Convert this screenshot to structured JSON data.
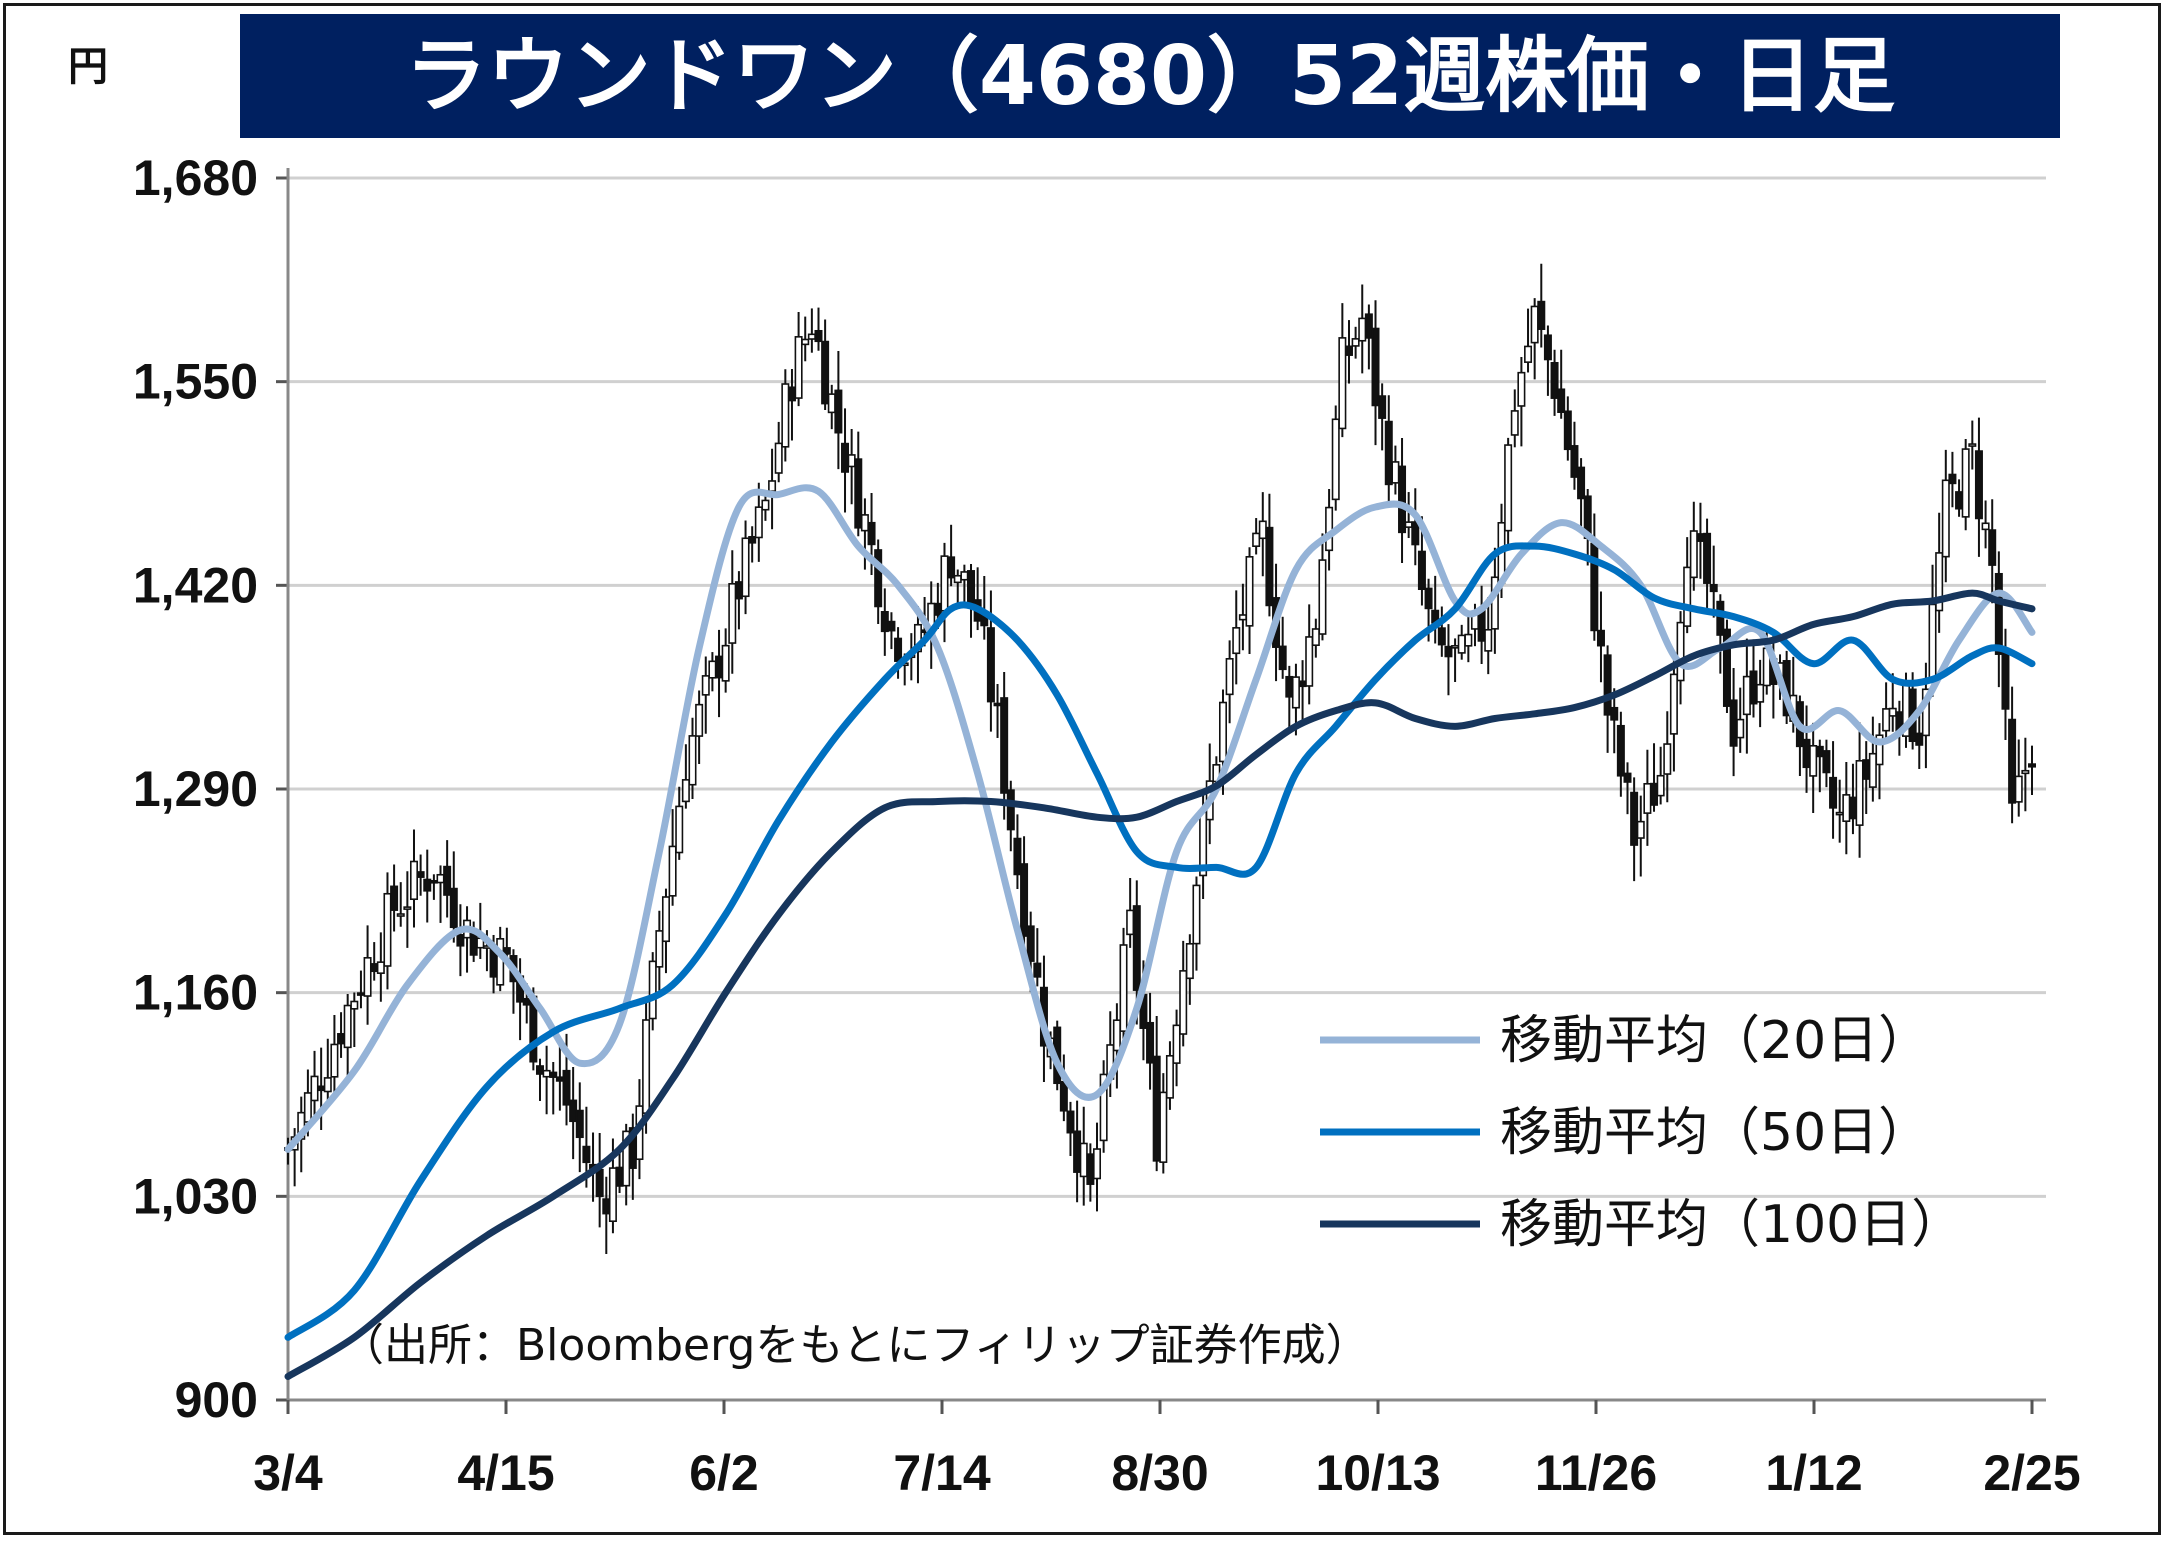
{
  "chart_data": {
    "type": "candlestick",
    "title": "ラウンドワン（4680）52週株価・日足",
    "ylabel": "円",
    "ylim": [
      900,
      1680
    ],
    "yticks": [
      "1,680",
      "1,550",
      "1,420",
      "1,290",
      "1,160",
      "1,030",
      "900"
    ],
    "ytick_values": [
      1680,
      1550,
      1420,
      1290,
      1160,
      1030,
      900
    ],
    "xticks": [
      "3/4",
      "4/15",
      "6/2",
      "7/14",
      "8/30",
      "10/13",
      "11/26",
      "1/12",
      "2/25"
    ],
    "grid": true,
    "legend_position": "bottom-right",
    "source": "（出所：Bloombergをもとにフィリップ証券作成）",
    "price_path": [
      [
        0,
        1060
      ],
      [
        10,
        1160
      ],
      [
        16,
        1215
      ],
      [
        22,
        1240
      ],
      [
        27,
        1200
      ],
      [
        33,
        1180
      ],
      [
        38,
        1120
      ],
      [
        42,
        1090
      ],
      [
        47,
        1030
      ],
      [
        52,
        1060
      ],
      [
        56,
        1200
      ],
      [
        60,
        1310
      ],
      [
        64,
        1360
      ],
      [
        68,
        1420
      ],
      [
        72,
        1470
      ],
      [
        76,
        1555
      ],
      [
        79,
        1590
      ],
      [
        83,
        1520
      ],
      [
        87,
        1460
      ],
      [
        91,
        1390
      ],
      [
        95,
        1380
      ],
      [
        100,
        1440
      ],
      [
        104,
        1400
      ],
      [
        107,
        1330
      ],
      [
        110,
        1240
      ],
      [
        114,
        1140
      ],
      [
        118,
        1080
      ],
      [
        121,
        1030
      ],
      [
        124,
        1120
      ],
      [
        127,
        1200
      ],
      [
        131,
        1070
      ],
      [
        135,
        1180
      ],
      [
        139,
        1290
      ],
      [
        143,
        1390
      ],
      [
        147,
        1450
      ],
      [
        151,
        1340
      ],
      [
        155,
        1400
      ],
      [
        159,
        1560
      ],
      [
        162,
        1590
      ],
      [
        165,
        1520
      ],
      [
        169,
        1450
      ],
      [
        173,
        1380
      ],
      [
        177,
        1370
      ],
      [
        181,
        1400
      ],
      [
        185,
        1540
      ],
      [
        188,
        1590
      ],
      [
        191,
        1550
      ],
      [
        195,
        1470
      ],
      [
        199,
        1340
      ],
      [
        203,
        1260
      ],
      [
        207,
        1300
      ],
      [
        211,
        1450
      ],
      [
        214,
        1420
      ],
      [
        218,
        1330
      ],
      [
        222,
        1370
      ],
      [
        226,
        1350
      ],
      [
        230,
        1300
      ],
      [
        234,
        1270
      ],
      [
        238,
        1300
      ],
      [
        242,
        1350
      ],
      [
        246,
        1330
      ],
      [
        250,
        1470
      ],
      [
        254,
        1500
      ],
      [
        257,
        1430
      ],
      [
        260,
        1270
      ],
      [
        263,
        1320
      ]
    ],
    "series": [
      {
        "name": "移動平均（20日）",
        "color": "#95b3d7",
        "points": [
          [
            0,
            1060
          ],
          [
            10,
            1110
          ],
          [
            18,
            1165
          ],
          [
            26,
            1200
          ],
          [
            32,
            1185
          ],
          [
            38,
            1150
          ],
          [
            44,
            1115
          ],
          [
            50,
            1140
          ],
          [
            56,
            1250
          ],
          [
            62,
            1380
          ],
          [
            68,
            1470
          ],
          [
            74,
            1478
          ],
          [
            80,
            1480
          ],
          [
            86,
            1445
          ],
          [
            92,
            1420
          ],
          [
            98,
            1380
          ],
          [
            104,
            1300
          ],
          [
            110,
            1200
          ],
          [
            116,
            1115
          ],
          [
            122,
            1095
          ],
          [
            128,
            1150
          ],
          [
            134,
            1250
          ],
          [
            140,
            1290
          ],
          [
            146,
            1360
          ],
          [
            152,
            1430
          ],
          [
            158,
            1455
          ],
          [
            164,
            1470
          ],
          [
            170,
            1465
          ],
          [
            176,
            1410
          ],
          [
            180,
            1405
          ],
          [
            186,
            1440
          ],
          [
            192,
            1460
          ],
          [
            198,
            1445
          ],
          [
            204,
            1420
          ],
          [
            210,
            1370
          ],
          [
            216,
            1380
          ],
          [
            222,
            1390
          ],
          [
            228,
            1330
          ],
          [
            234,
            1340
          ],
          [
            240,
            1320
          ],
          [
            246,
            1340
          ],
          [
            252,
            1385
          ],
          [
            258,
            1415
          ],
          [
            263,
            1390
          ]
        ]
      },
      {
        "name": "移動平均（50日）",
        "color": "#0070c0",
        "points": [
          [
            0,
            940
          ],
          [
            10,
            970
          ],
          [
            20,
            1040
          ],
          [
            30,
            1100
          ],
          [
            40,
            1135
          ],
          [
            50,
            1150
          ],
          [
            58,
            1165
          ],
          [
            66,
            1210
          ],
          [
            74,
            1270
          ],
          [
            82,
            1320
          ],
          [
            90,
            1360
          ],
          [
            96,
            1385
          ],
          [
            100,
            1405
          ],
          [
            104,
            1405
          ],
          [
            110,
            1385
          ],
          [
            116,
            1350
          ],
          [
            122,
            1300
          ],
          [
            128,
            1250
          ],
          [
            134,
            1240
          ],
          [
            140,
            1240
          ],
          [
            146,
            1240
          ],
          [
            152,
            1300
          ],
          [
            158,
            1330
          ],
          [
            164,
            1360
          ],
          [
            170,
            1385
          ],
          [
            176,
            1405
          ],
          [
            182,
            1440
          ],
          [
            188,
            1445
          ],
          [
            194,
            1440
          ],
          [
            200,
            1430
          ],
          [
            206,
            1412
          ],
          [
            212,
            1405
          ],
          [
            218,
            1400
          ],
          [
            224,
            1390
          ],
          [
            230,
            1370
          ],
          [
            236,
            1385
          ],
          [
            242,
            1360
          ],
          [
            248,
            1360
          ],
          [
            254,
            1375
          ],
          [
            258,
            1380
          ],
          [
            263,
            1370
          ]
        ]
      },
      {
        "name": "移動平均（100日）",
        "color": "#17365d",
        "points": [
          [
            0,
            915
          ],
          [
            10,
            940
          ],
          [
            20,
            975
          ],
          [
            30,
            1005
          ],
          [
            40,
            1030
          ],
          [
            50,
            1060
          ],
          [
            58,
            1105
          ],
          [
            66,
            1160
          ],
          [
            74,
            1210
          ],
          [
            82,
            1250
          ],
          [
            90,
            1278
          ],
          [
            98,
            1282
          ],
          [
            106,
            1282
          ],
          [
            114,
            1278
          ],
          [
            122,
            1272
          ],
          [
            128,
            1272
          ],
          [
            134,
            1282
          ],
          [
            140,
            1292
          ],
          [
            146,
            1312
          ],
          [
            152,
            1330
          ],
          [
            158,
            1340
          ],
          [
            164,
            1345
          ],
          [
            170,
            1335
          ],
          [
            176,
            1330
          ],
          [
            182,
            1335
          ],
          [
            188,
            1338
          ],
          [
            194,
            1342
          ],
          [
            200,
            1350
          ],
          [
            206,
            1362
          ],
          [
            212,
            1375
          ],
          [
            218,
            1382
          ],
          [
            224,
            1385
          ],
          [
            230,
            1395
          ],
          [
            236,
            1400
          ],
          [
            242,
            1408
          ],
          [
            248,
            1410
          ],
          [
            254,
            1415
          ],
          [
            258,
            1410
          ],
          [
            263,
            1405
          ]
        ]
      }
    ]
  }
}
